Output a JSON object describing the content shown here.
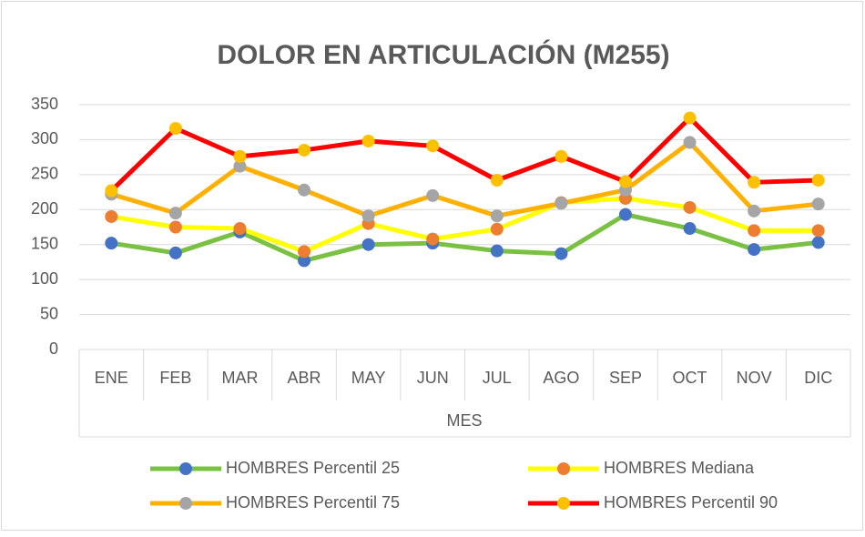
{
  "chart_data": {
    "type": "line",
    "title": "DOLOR EN ARTICULACIÓN (M255)",
    "x_label": "MES",
    "categories": [
      "ENE",
      "FEB",
      "MAR",
      "ABR",
      "MAY",
      "JUN",
      "JUL",
      "AGO",
      "SEP",
      "OCT",
      "NOV",
      "DIC"
    ],
    "series": [
      {
        "name": "HOMBRES Percentil 25",
        "color": "#7ac143",
        "marker_color": "#4472c4",
        "values": [
          152,
          138,
          168,
          127,
          150,
          152,
          141,
          137,
          193,
          173,
          143,
          153
        ]
      },
      {
        "name": "HOMBRES Mediana",
        "color": "#ffff00",
        "marker_color": "#ed7d31",
        "values": [
          190,
          175,
          173,
          140,
          180,
          158,
          172,
          210,
          216,
          203,
          170,
          170
        ]
      },
      {
        "name": "HOMBRES Percentil 75",
        "color": "#ffb000",
        "marker_color": "#a5a5a5",
        "values": [
          222,
          195,
          262,
          228,
          191,
          220,
          191,
          209,
          228,
          296,
          198,
          208
        ]
      },
      {
        "name": "HOMBRES Percentil 90",
        "color": "#ff0000",
        "marker_color": "#ffc000",
        "values": [
          227,
          316,
          276,
          285,
          298,
          291,
          242,
          276,
          240,
          331,
          239,
          242
        ]
      }
    ],
    "ylim": [
      0,
      350
    ],
    "yticks": [
      0,
      50,
      100,
      150,
      200,
      250,
      300,
      350
    ],
    "grid": true,
    "legend": "bottom"
  }
}
